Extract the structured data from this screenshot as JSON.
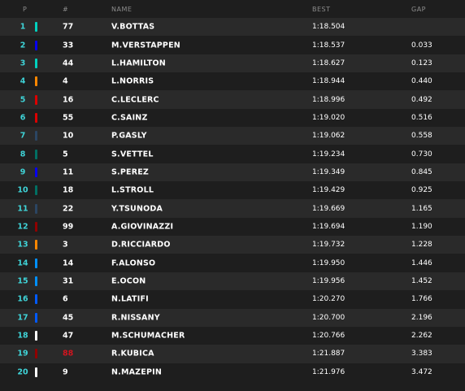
{
  "header": {
    "pos": "P",
    "num": "#",
    "name": "NAME",
    "best": "BEST",
    "gap": "GAP"
  },
  "rows": [
    {
      "pos": "1",
      "num": "77",
      "name": "V.BOTTAS",
      "best": "1:18.504",
      "gap": "",
      "team_color": "#00d2be",
      "num_color": "#ffffff"
    },
    {
      "pos": "2",
      "num": "33",
      "name": "M.VERSTAPPEN",
      "best": "1:18.537",
      "gap": "0.033",
      "team_color": "#0600ef",
      "num_color": "#ffffff"
    },
    {
      "pos": "3",
      "num": "44",
      "name": "L.HAMILTON",
      "best": "1:18.627",
      "gap": "0.123",
      "team_color": "#00d2be",
      "num_color": "#ffffff"
    },
    {
      "pos": "4",
      "num": "4",
      "name": "L.NORRIS",
      "best": "1:18.944",
      "gap": "0.440",
      "team_color": "#ff8700",
      "num_color": "#ffffff"
    },
    {
      "pos": "5",
      "num": "16",
      "name": "C.LECLERC",
      "best": "1:18.996",
      "gap": "0.492",
      "team_color": "#dc0000",
      "num_color": "#ffffff"
    },
    {
      "pos": "6",
      "num": "55",
      "name": "C.SAINZ",
      "best": "1:19.020",
      "gap": "0.516",
      "team_color": "#dc0000",
      "num_color": "#ffffff"
    },
    {
      "pos": "7",
      "num": "10",
      "name": "P.GASLY",
      "best": "1:19.062",
      "gap": "0.558",
      "team_color": "#2b4562",
      "num_color": "#ffffff"
    },
    {
      "pos": "8",
      "num": "5",
      "name": "S.VETTEL",
      "best": "1:19.234",
      "gap": "0.730",
      "team_color": "#006f62",
      "num_color": "#ffffff"
    },
    {
      "pos": "9",
      "num": "11",
      "name": "S.PEREZ",
      "best": "1:19.349",
      "gap": "0.845",
      "team_color": "#0600ef",
      "num_color": "#ffffff"
    },
    {
      "pos": "10",
      "num": "18",
      "name": "L.STROLL",
      "best": "1:19.429",
      "gap": "0.925",
      "team_color": "#006f62",
      "num_color": "#ffffff"
    },
    {
      "pos": "11",
      "num": "22",
      "name": "Y.TSUNODA",
      "best": "1:19.669",
      "gap": "1.165",
      "team_color": "#2b4562",
      "num_color": "#ffffff"
    },
    {
      "pos": "12",
      "num": "99",
      "name": "A.GIOVINAZZI",
      "best": "1:19.694",
      "gap": "1.190",
      "team_color": "#900000",
      "num_color": "#ffffff"
    },
    {
      "pos": "13",
      "num": "3",
      "name": "D.RICCIARDO",
      "best": "1:19.732",
      "gap": "1.228",
      "team_color": "#ff8700",
      "num_color": "#ffffff"
    },
    {
      "pos": "14",
      "num": "14",
      "name": "F.ALONSO",
      "best": "1:19.950",
      "gap": "1.446",
      "team_color": "#0090ff",
      "num_color": "#ffffff"
    },
    {
      "pos": "15",
      "num": "31",
      "name": "E.OCON",
      "best": "1:19.956",
      "gap": "1.452",
      "team_color": "#0090ff",
      "num_color": "#ffffff"
    },
    {
      "pos": "16",
      "num": "6",
      "name": "N.LATIFI",
      "best": "1:20.270",
      "gap": "1.766",
      "team_color": "#005aff",
      "num_color": "#ffffff"
    },
    {
      "pos": "17",
      "num": "45",
      "name": "R.NISSANY",
      "best": "1:20.700",
      "gap": "2.196",
      "team_color": "#005aff",
      "num_color": "#ffffff"
    },
    {
      "pos": "18",
      "num": "47",
      "name": "M.SCHUMACHER",
      "best": "1:20.766",
      "gap": "2.262",
      "team_color": "#ffffff",
      "num_color": "#ffffff"
    },
    {
      "pos": "19",
      "num": "88",
      "name": "R.KUBICA",
      "best": "1:21.887",
      "gap": "3.383",
      "team_color": "#900000",
      "num_color": "#d2141e"
    },
    {
      "pos": "20",
      "num": "9",
      "name": "N.MAZEPIN",
      "best": "1:21.976",
      "gap": "3.472",
      "team_color": "#ffffff",
      "num_color": "#ffffff"
    }
  ]
}
